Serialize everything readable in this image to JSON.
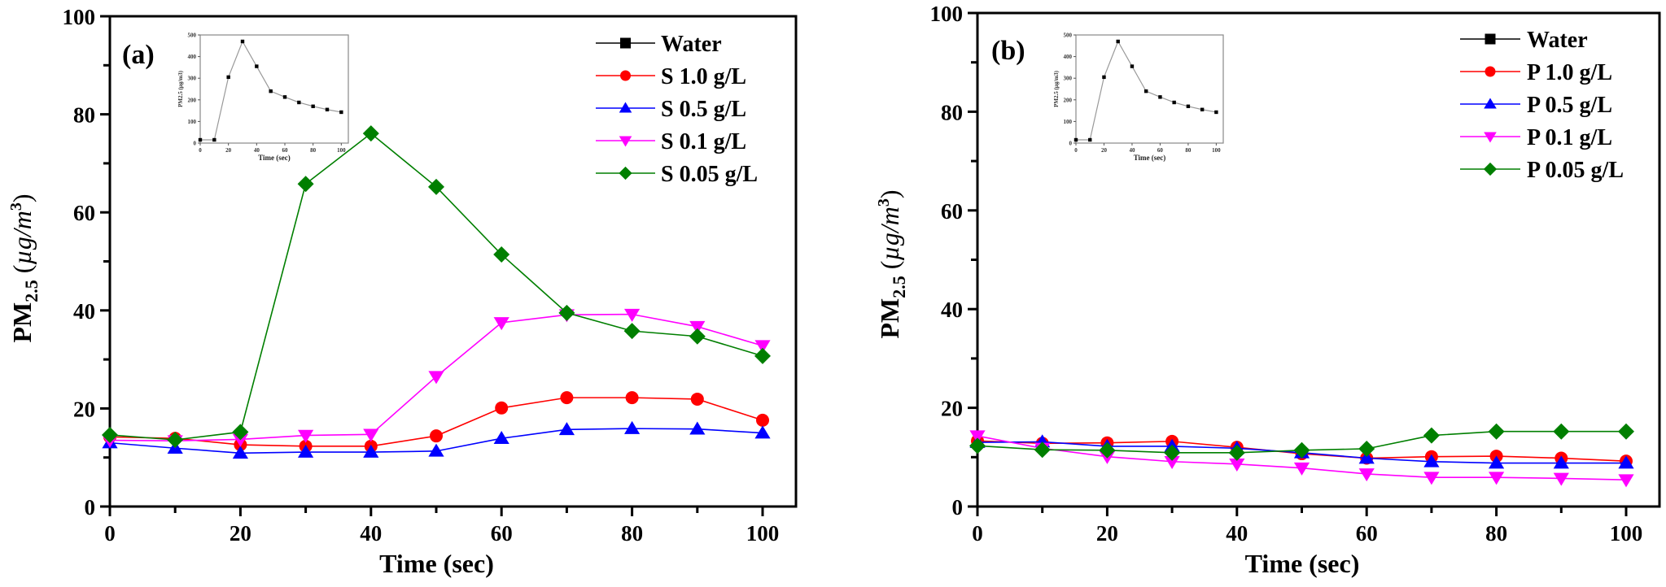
{
  "chart_data": [
    {
      "type": "line",
      "panel_label": "(a)",
      "title": "",
      "xlabel": "Time (sec)",
      "ylabel": "PM2.5 (µg/m3)",
      "ylabel_parts": {
        "main": "PM",
        "sub": "2.5",
        "unit_open": " (",
        "unit": "µg/m",
        "sup": "3",
        "unit_close": ")"
      },
      "xlim": [
        0,
        105
      ],
      "ylim": [
        0,
        100
      ],
      "xticks": [
        0,
        20,
        40,
        60,
        80,
        100
      ],
      "xticks_minor": [
        10,
        30,
        50,
        70,
        90
      ],
      "yticks": [
        0,
        20,
        40,
        60,
        80,
        100
      ],
      "yticks_minor": [
        10,
        30,
        50,
        70,
        90
      ],
      "grid": false,
      "legend_position": "top-right",
      "x": [
        0,
        10,
        20,
        30,
        40,
        50,
        60,
        70,
        80,
        90,
        100
      ],
      "series": [
        {
          "name": "Water",
          "color": "#000000",
          "marker": "square",
          "in_main_plot": false,
          "values": []
        },
        {
          "name": "S 1.0 g/L",
          "color": "#ff0000",
          "marker": "circle",
          "in_main_plot": true,
          "values": [
            14.2,
            13.9,
            12.6,
            12.3,
            12.3,
            14.4,
            20.1,
            22.2,
            22.2,
            21.9,
            17.6
          ]
        },
        {
          "name": "S 0.5 g/L",
          "color": "#0000ff",
          "marker": "triangle-up",
          "in_main_plot": true,
          "values": [
            13.0,
            11.9,
            10.9,
            11.1,
            11.1,
            11.3,
            13.9,
            15.7,
            15.9,
            15.8,
            15.0
          ]
        },
        {
          "name": "S 0.1 g/L",
          "color": "#ff00ff",
          "marker": "triangle-down",
          "in_main_plot": true,
          "values": [
            13.5,
            13.4,
            13.7,
            14.5,
            14.7,
            26.5,
            37.5,
            39.1,
            39.2,
            36.7,
            32.8
          ]
        },
        {
          "name": "S 0.05 g/L",
          "color": "#007f00",
          "marker": "diamond",
          "in_main_plot": true,
          "values": [
            14.6,
            13.6,
            15.2,
            65.8,
            76.1,
            65.2,
            51.4,
            39.5,
            35.8,
            34.7,
            30.7
          ]
        }
      ],
      "inset": {
        "type": "line",
        "series_name": "Water",
        "color": "#000000",
        "line_color": "#999999",
        "xlabel": "Time (sec)",
        "ylabel": "PM2.5 (µg/m3)",
        "xlim": [
          0,
          105
        ],
        "ylim": [
          0,
          500
        ],
        "xticks": [
          0,
          20,
          40,
          60,
          80,
          100
        ],
        "yticks": [
          0,
          100,
          200,
          300,
          400,
          500
        ],
        "x": [
          0,
          10,
          20,
          30,
          40,
          50,
          60,
          70,
          80,
          90,
          100
        ],
        "values": [
          15,
          15,
          305,
          470,
          355,
          240,
          213,
          188,
          170,
          155,
          143
        ]
      }
    },
    {
      "type": "line",
      "panel_label": "(b)",
      "title": "",
      "xlabel": "Time (sec)",
      "ylabel": "PM2.5 (µg/m3)",
      "ylabel_parts": {
        "main": "PM",
        "sub": "2.5",
        "unit_open": " (",
        "unit": "µg/m",
        "sup": "3",
        "unit_close": ")"
      },
      "xlim": [
        0,
        105
      ],
      "ylim": [
        0,
        100
      ],
      "xticks": [
        0,
        20,
        40,
        60,
        80,
        100
      ],
      "xticks_minor": [
        10,
        30,
        50,
        70,
        90
      ],
      "yticks": [
        0,
        20,
        40,
        60,
        80,
        100
      ],
      "yticks_minor": [
        10,
        30,
        50,
        70,
        90
      ],
      "grid": false,
      "legend_position": "top-right",
      "x": [
        0,
        10,
        20,
        30,
        40,
        50,
        60,
        70,
        80,
        90,
        100
      ],
      "series": [
        {
          "name": "Water",
          "color": "#000000",
          "marker": "square",
          "in_main_plot": false,
          "values": []
        },
        {
          "name": "P 1.0 g/L",
          "color": "#ff0000",
          "marker": "circle",
          "in_main_plot": true,
          "values": [
            13.3,
            12.8,
            12.9,
            13.2,
            12.0,
            10.7,
            9.8,
            10.1,
            10.2,
            9.8,
            9.2
          ]
        },
        {
          "name": "P 0.5 g/L",
          "color": "#0000ff",
          "marker": "triangle-up",
          "in_main_plot": true,
          "values": [
            13.0,
            13.1,
            12.2,
            12.2,
            11.8,
            10.9,
            9.8,
            9.1,
            8.8,
            8.8,
            8.8
          ]
        },
        {
          "name": "P 0.1 g/L",
          "color": "#ff00ff",
          "marker": "triangle-down",
          "in_main_plot": true,
          "values": [
            14.3,
            11.8,
            10.1,
            9.1,
            8.6,
            7.8,
            6.6,
            5.9,
            5.9,
            5.7,
            5.4
          ]
        },
        {
          "name": "P 0.05 g/L",
          "color": "#007f00",
          "marker": "diamond",
          "in_main_plot": true,
          "values": [
            12.3,
            11.5,
            11.4,
            10.9,
            10.9,
            11.4,
            11.7,
            14.4,
            15.2,
            15.2,
            15.2
          ]
        }
      ],
      "inset": {
        "type": "line",
        "series_name": "Water",
        "color": "#000000",
        "line_color": "#999999",
        "xlabel": "Time (sec)",
        "ylabel": "PM2.5 (µg/m3)",
        "xlim": [
          0,
          105
        ],
        "ylim": [
          0,
          500
        ],
        "xticks": [
          0,
          20,
          40,
          60,
          80,
          100
        ],
        "yticks": [
          0,
          100,
          200,
          300,
          400,
          500
        ],
        "x": [
          0,
          10,
          20,
          30,
          40,
          50,
          60,
          70,
          80,
          90,
          100
        ],
        "values": [
          15,
          15,
          305,
          470,
          355,
          240,
          213,
          188,
          170,
          155,
          143
        ]
      }
    }
  ]
}
